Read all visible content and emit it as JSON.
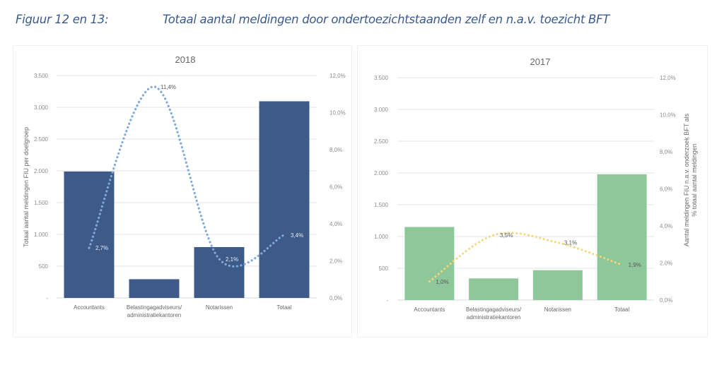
{
  "caption": {
    "label": "Figuur 12 en 13:",
    "title": "Totaal aantal meldingen door ondertoezichtstaanden zelf en n.a.v. toezicht BFT"
  },
  "chart_data": [
    {
      "id": "2018",
      "type": "bar",
      "title": "2018",
      "categories": [
        "Accountants",
        [
          "Belastingagadviseurs/",
          "administratiekantoren"
        ],
        "Notarissen",
        "Totaal"
      ],
      "series": [
        {
          "name": "Totaal aantal meldingen FIU per doelgroep",
          "kind": "bar",
          "axis": "left",
          "values": [
            1990,
            295,
            800,
            3095
          ],
          "color": "#3d5a88"
        },
        {
          "name": "Aantal meldingen FIU n.a.v. onderzoek BFT als % totaal aantal meldingen",
          "kind": "line",
          "style": "dotted",
          "axis": "right",
          "values": [
            2.7,
            11.4,
            2.1,
            3.4
          ],
          "labels": [
            "2,7%",
            "11,4%",
            "2,1%",
            "3,4%"
          ],
          "color": "#7ea9da"
        }
      ],
      "ylabel": "Totaal aantal meldingen FIU per doelgroep",
      "y2label": "",
      "ylim": [
        0,
        3500
      ],
      "y2lim": [
        0,
        12
      ],
      "yticks": [
        "-",
        "500",
        "1.000",
        "1.500",
        "2.000",
        "2.500",
        "3.000",
        "3.500"
      ],
      "y2ticks": [
        "0,0%",
        "2,0%",
        "4,0%",
        "6,0%",
        "8,0%",
        "10,0%",
        "12,0%"
      ],
      "grid": true,
      "legend": "none"
    },
    {
      "id": "2017",
      "type": "bar",
      "title": "2017",
      "categories": [
        "Accountants",
        [
          "Belastingagadviseurs/",
          "administratiekantoren"
        ],
        "Notarissen",
        "Totaal"
      ],
      "series": [
        {
          "name": "Totaal aantal meldingen FIU per doelgroep",
          "kind": "bar",
          "axis": "left",
          "values": [
            1150,
            340,
            470,
            1980
          ],
          "color": "#8dc79a"
        },
        {
          "name": "Aantal meldingen FIU n.a.v. onderzoek BFT als % totaal aantal meldingen",
          "kind": "line",
          "style": "dotted",
          "axis": "right",
          "values": [
            1.0,
            3.5,
            3.1,
            1.9
          ],
          "labels": [
            "1,0%",
            "3,5%",
            "3,1%",
            "1,9%"
          ],
          "color": "#f5d67a"
        }
      ],
      "ylabel": "",
      "y2label": [
        "Aantal meldingen FIU n.a.v. onderzoek BFT als",
        "% totaal aantal meldingen"
      ],
      "ylim": [
        0,
        3500
      ],
      "y2lim": [
        0,
        12
      ],
      "yticks": [
        "-",
        "500",
        "1.000",
        "1.500",
        "2.000",
        "2.500",
        "3.000",
        "3.500"
      ],
      "y2ticks": [
        "0,0%",
        "2,0%",
        "4,0%",
        "6,0%",
        "8,0%",
        "10,0%",
        "12,0%"
      ],
      "grid": true,
      "legend": "none"
    }
  ]
}
